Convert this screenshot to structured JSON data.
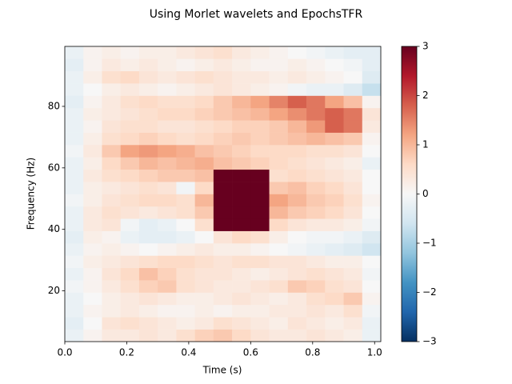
{
  "chart_data": {
    "type": "heatmap",
    "title": "Using Morlet wavelets and EpochsTFR",
    "xlabel": "Time (s)",
    "ylabel": "Frequency (Hz)",
    "colormap": "RdBu_r",
    "clim": [
      -3,
      3
    ],
    "cticks": [
      {
        "value": 3,
        "label": "3"
      },
      {
        "value": 2,
        "label": "2"
      },
      {
        "value": 1,
        "label": "1"
      },
      {
        "value": 0,
        "label": "0"
      },
      {
        "value": -1,
        "label": "−1"
      },
      {
        "value": -2,
        "label": "−2"
      },
      {
        "value": -3,
        "label": "−3"
      }
    ],
    "xlim": [
      0,
      1.02
    ],
    "ylim": [
      3.5,
      99.5
    ],
    "xticks": [
      {
        "value": 0,
        "label": "0.0"
      },
      0.2,
      0.4,
      0.6,
      0.8,
      {
        "value": 1,
        "label": "1.0"
      }
    ],
    "yticks": [
      20,
      40,
      60,
      80
    ],
    "x": [
      0.03,
      0.09,
      0.15,
      0.21,
      0.27,
      0.33,
      0.39,
      0.45,
      0.51,
      0.57,
      0.63,
      0.69,
      0.75,
      0.81,
      0.87,
      0.93,
      0.99
    ],
    "y": [
      5.5,
      9.5,
      13.5,
      17.5,
      21.5,
      25.5,
      29.5,
      33.5,
      37.5,
      41.5,
      45.5,
      49.5,
      53.5,
      57.5,
      61.5,
      65.5,
      69.5,
      73.5,
      77.5,
      81.5,
      85.5,
      89.5,
      93.5,
      97.5
    ],
    "values": [
      [
        -0.2,
        0.1,
        0.3,
        0.3,
        0.4,
        0.3,
        0.5,
        0.7,
        0.8,
        0.6,
        0.4,
        0.3,
        0.3,
        0.4,
        0.3,
        0.2,
        -0.2
      ],
      [
        -0.3,
        0.0,
        0.4,
        0.5,
        0.4,
        0.3,
        0.2,
        0.3,
        0.5,
        0.4,
        0.3,
        0.2,
        0.4,
        0.3,
        0.2,
        0.3,
        -0.2
      ],
      [
        -0.2,
        0.1,
        0.2,
        0.3,
        0.2,
        0.1,
        0.1,
        0.2,
        0.1,
        0.2,
        0.2,
        0.3,
        0.3,
        0.4,
        0.3,
        0.5,
        -0.1
      ],
      [
        -0.2,
        0.0,
        0.2,
        0.3,
        0.4,
        0.3,
        0.2,
        0.2,
        0.3,
        0.4,
        0.3,
        0.2,
        0.3,
        0.5,
        0.6,
        0.8,
        0.1
      ],
      [
        -0.1,
        0.1,
        0.3,
        0.5,
        0.7,
        0.8,
        0.5,
        0.4,
        0.3,
        0.3,
        0.4,
        0.5,
        0.8,
        0.7,
        0.5,
        0.4,
        0.0
      ],
      [
        -0.2,
        0.1,
        0.4,
        0.6,
        0.9,
        0.7,
        0.5,
        0.4,
        0.4,
        0.3,
        0.2,
        0.3,
        0.4,
        0.5,
        0.4,
        0.3,
        -0.1
      ],
      [
        -0.1,
        0.2,
        0.3,
        0.4,
        0.5,
        0.6,
        0.6,
        0.5,
        0.4,
        0.5,
        0.5,
        0.4,
        0.4,
        0.3,
        0.2,
        0.2,
        0.0
      ],
      [
        -0.2,
        0.1,
        0.2,
        0.1,
        0.0,
        0.1,
        0.2,
        0.3,
        0.2,
        0.2,
        0.1,
        0.0,
        -0.1,
        -0.2,
        -0.3,
        -0.4,
        -0.6
      ],
      [
        -0.3,
        0.2,
        0.1,
        -0.2,
        -0.3,
        -0.3,
        -0.2,
        0.0,
        0.4,
        0.6,
        0.5,
        0.2,
        0.0,
        -0.1,
        -0.1,
        -0.2,
        -0.4
      ],
      [
        -0.2,
        0.3,
        0.4,
        -0.1,
        -0.3,
        -0.2,
        0.0,
        0.5,
        3.5,
        3.5,
        3.2,
        0.6,
        0.4,
        0.3,
        0.3,
        0.2,
        -0.1
      ],
      [
        -0.2,
        0.3,
        0.5,
        0.4,
        0.3,
        0.4,
        0.5,
        0.8,
        4,
        4,
        4,
        1.0,
        0.8,
        0.7,
        0.6,
        0.4,
        0.0
      ],
      [
        -0.1,
        0.2,
        0.4,
        0.5,
        0.6,
        0.6,
        0.5,
        1.0,
        4,
        4,
        4,
        1.2,
        1.0,
        0.8,
        0.7,
        0.5,
        0.1
      ],
      [
        -0.2,
        0.2,
        0.3,
        0.4,
        0.5,
        0.4,
        -0.1,
        0.6,
        4,
        4,
        3.8,
        0.8,
        0.9,
        0.7,
        0.6,
        0.4,
        0.0
      ],
      [
        -0.2,
        0.3,
        0.5,
        0.6,
        0.7,
        0.8,
        0.8,
        0.9,
        3.5,
        3.6,
        3.0,
        0.5,
        0.6,
        0.5,
        0.4,
        0.3,
        0.0
      ],
      [
        -0.2,
        0.2,
        0.6,
        0.8,
        1.0,
        0.9,
        1.0,
        1.1,
        0.9,
        0.8,
        0.7,
        0.6,
        0.5,
        0.4,
        0.3,
        0.2,
        -0.2
      ],
      [
        -0.1,
        0.3,
        0.8,
        1.2,
        1.3,
        1.2,
        1.1,
        0.9,
        0.8,
        0.7,
        0.6,
        0.6,
        0.6,
        0.5,
        0.5,
        0.4,
        0.0
      ],
      [
        -0.2,
        0.2,
        0.5,
        0.6,
        0.7,
        0.6,
        0.5,
        0.6,
        0.7,
        0.8,
        0.7,
        0.8,
        0.9,
        1.0,
        0.9,
        0.8,
        0.1
      ],
      [
        -0.2,
        0.1,
        0.4,
        0.5,
        0.5,
        0.4,
        0.4,
        0.5,
        0.6,
        0.7,
        0.7,
        0.8,
        1.0,
        1.3,
        1.8,
        1.6,
        0.3
      ],
      [
        -0.2,
        0.2,
        0.3,
        0.4,
        0.5,
        0.6,
        0.6,
        0.7,
        0.8,
        0.9,
        1.0,
        1.2,
        1.4,
        1.6,
        1.8,
        1.6,
        0.4
      ],
      [
        -0.3,
        0.1,
        0.3,
        0.5,
        0.6,
        0.5,
        0.5,
        0.6,
        0.8,
        1.0,
        1.2,
        1.5,
        1.8,
        1.6,
        1.2,
        0.9,
        0.1
      ],
      [
        -0.2,
        0.0,
        0.2,
        0.3,
        0.2,
        0.1,
        0.2,
        0.3,
        0.4,
        0.3,
        0.2,
        0.1,
        -0.1,
        -0.2,
        -0.2,
        -0.4,
        -0.7
      ],
      [
        -0.2,
        0.2,
        0.5,
        0.6,
        0.4,
        0.3,
        0.4,
        0.5,
        0.4,
        0.3,
        0.3,
        0.2,
        0.3,
        0.2,
        0.1,
        0.0,
        -0.4
      ],
      [
        -0.3,
        0.1,
        0.3,
        0.2,
        0.3,
        0.2,
        0.1,
        0.2,
        0.3,
        0.2,
        0.1,
        0.1,
        0.2,
        0.1,
        0.0,
        -0.1,
        -0.3
      ],
      [
        -0.2,
        0.1,
        0.2,
        0.1,
        0.2,
        0.2,
        0.3,
        0.4,
        0.5,
        0.3,
        0.2,
        0.1,
        0.0,
        -0.1,
        -0.2,
        -0.3,
        -0.3
      ]
    ]
  }
}
